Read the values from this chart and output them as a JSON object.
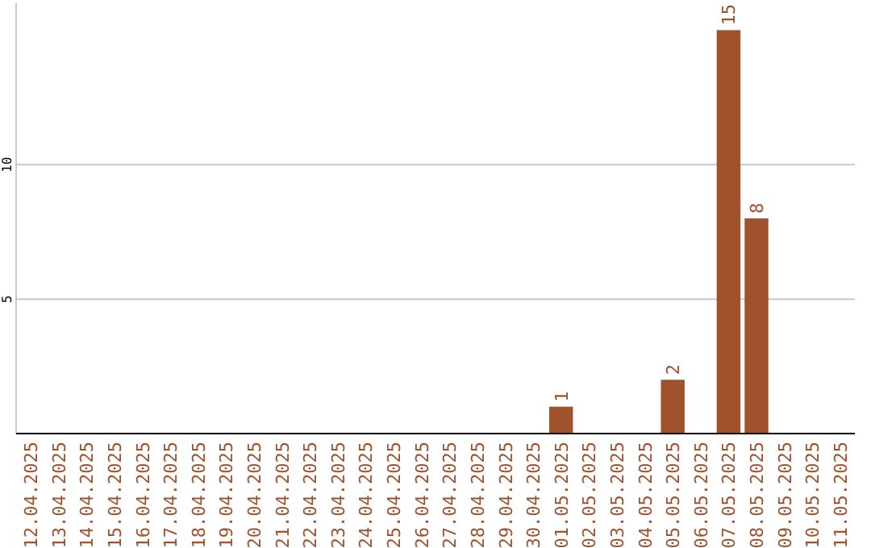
{
  "chart_data": {
    "type": "bar",
    "categories": [
      "12.04.2025",
      "13.04.2025",
      "14.04.2025",
      "15.04.2025",
      "16.04.2025",
      "17.04.2025",
      "18.04.2025",
      "19.04.2025",
      "20.04.2025",
      "21.04.2025",
      "22.04.2025",
      "23.04.2025",
      "24.04.2025",
      "25.04.2025",
      "26.04.2025",
      "27.04.2025",
      "28.04.2025",
      "29.04.2025",
      "30.04.2025",
      "01.05.2025",
      "02.05.2025",
      "03.05.2025",
      "04.05.2025",
      "05.05.2025",
      "06.05.2025",
      "07.05.2025",
      "08.05.2025",
      "09.05.2025",
      "10.05.2025",
      "11.05.2025"
    ],
    "values": [
      0,
      0,
      0,
      0,
      0,
      0,
      0,
      0,
      0,
      0,
      0,
      0,
      0,
      0,
      0,
      0,
      0,
      0,
      0,
      1,
      0,
      0,
      0,
      2,
      0,
      15,
      8,
      0,
      0,
      0
    ],
    "value_labels": [
      null,
      null,
      null,
      null,
      null,
      null,
      null,
      null,
      null,
      null,
      null,
      null,
      null,
      null,
      null,
      null,
      null,
      null,
      null,
      "1",
      null,
      null,
      null,
      "2",
      null,
      "15",
      "8",
      null,
      null,
      null
    ],
    "color": "#a0522d",
    "ylim": [
      0,
      16
    ],
    "yticks": [
      5,
      10
    ],
    "grid": "y"
  }
}
